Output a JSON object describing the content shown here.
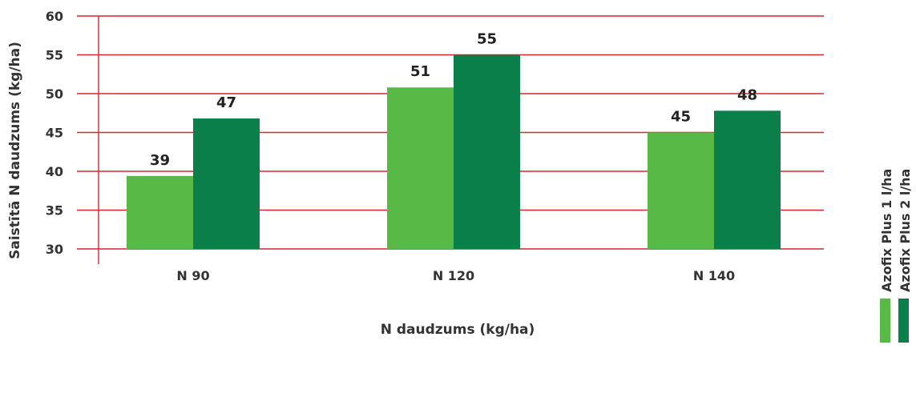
{
  "chart_data": {
    "type": "bar",
    "title": "",
    "xlabel": "N daudzums (kg/ha)",
    "ylabel": "Saistītā N daudzums (kg/ha)",
    "categories": [
      "N 90",
      "N 120",
      "N 140"
    ],
    "ylim": [
      30,
      60
    ],
    "yticks": [
      30,
      35,
      40,
      45,
      50,
      55,
      60
    ],
    "grid": true,
    "legend_position": "right",
    "series": [
      {
        "name": "Azofix Plus 1 l/ha",
        "color": "#58b947",
        "values": [
          39.4,
          50.8,
          45
        ],
        "labels": [
          "39",
          "51",
          "45"
        ]
      },
      {
        "name": "Azofix Plus 2 l/ha",
        "color": "#0b7f4a",
        "values": [
          46.8,
          55,
          47.8
        ],
        "labels": [
          "47",
          "55",
          "48"
        ]
      }
    ],
    "colors": {
      "grid": "#d7262e",
      "axis": "#d7262e",
      "text": "#333333",
      "label": "#222222"
    }
  }
}
